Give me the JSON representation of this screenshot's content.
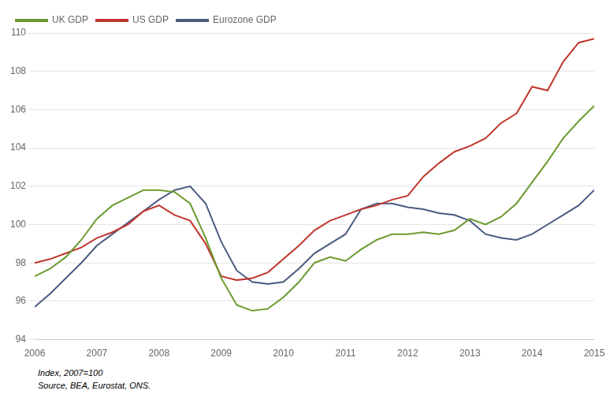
{
  "chart_data": {
    "type": "line",
    "x": [
      2006,
      2006.25,
      2006.5,
      2006.75,
      2007,
      2007.25,
      2007.5,
      2007.75,
      2008,
      2008.25,
      2008.5,
      2008.75,
      2009,
      2009.25,
      2009.5,
      2009.75,
      2010,
      2010.25,
      2010.5,
      2010.75,
      2011,
      2011.25,
      2011.5,
      2011.75,
      2012,
      2012.25,
      2012.5,
      2012.75,
      2013,
      2013.25,
      2013.5,
      2013.75,
      2014,
      2014.25,
      2014.5,
      2014.75,
      2015
    ],
    "series": [
      {
        "name": "UK GDP",
        "color": "#6b9a2e",
        "values": [
          97.3,
          97.7,
          98.3,
          99.2,
          100.3,
          101.0,
          101.4,
          101.8,
          101.8,
          101.7,
          101.1,
          99.3,
          97.2,
          95.8,
          95.5,
          95.6,
          96.2,
          97.0,
          98.0,
          98.3,
          98.1,
          98.7,
          99.2,
          99.5,
          99.5,
          99.6,
          99.5,
          99.7,
          100.3,
          100.0,
          100.4,
          101.1,
          102.2,
          103.3,
          104.5,
          105.4,
          106.2
        ]
      },
      {
        "name": "US GDP",
        "color": "#c0362c",
        "values": [
          98.0,
          98.2,
          98.5,
          98.8,
          99.3,
          99.6,
          100.0,
          100.7,
          101.0,
          100.5,
          100.2,
          99.0,
          97.3,
          97.1,
          97.2,
          97.5,
          98.2,
          98.9,
          99.7,
          100.2,
          100.5,
          100.8,
          101.0,
          101.3,
          101.5,
          102.5,
          103.2,
          103.8,
          104.1,
          104.5,
          105.3,
          105.8,
          107.2,
          107.0,
          108.5,
          109.5,
          109.7
        ]
      },
      {
        "name": "Eurozone GDP",
        "color": "#4a5a80",
        "values": [
          95.7,
          96.4,
          97.2,
          98.0,
          98.9,
          99.5,
          100.1,
          100.7,
          101.3,
          101.8,
          102.0,
          101.1,
          99.1,
          97.6,
          97.0,
          96.9,
          97.0,
          97.7,
          98.5,
          99.0,
          99.5,
          100.8,
          101.1,
          101.1,
          100.9,
          100.8,
          100.6,
          100.5,
          100.2,
          99.5,
          99.3,
          99.2,
          99.5,
          100.0,
          100.5,
          101.0,
          101.8
        ]
      }
    ],
    "xlim": [
      2006,
      2015
    ],
    "xticks": [
      2006,
      2007,
      2008,
      2009,
      2010,
      2011,
      2012,
      2013,
      2014,
      2015
    ],
    "ylim": [
      94,
      110
    ],
    "yticks": [
      94,
      96,
      98,
      100,
      102,
      104,
      106,
      108,
      110
    ],
    "grid": "y",
    "legend": "top-left",
    "annotations": [
      "Index, 2007=100",
      "Source, BEA, Eurostat, ONS."
    ]
  }
}
